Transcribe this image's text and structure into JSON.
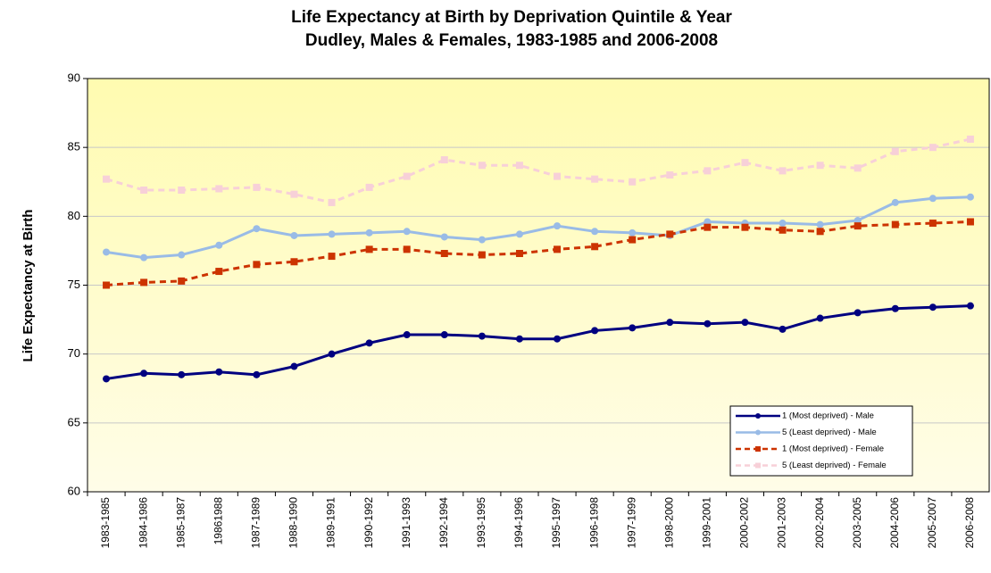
{
  "chart_data": {
    "type": "line",
    "title": "Life Expectancy at Birth by Deprivation Quintile & Year",
    "subtitle": "Dudley, Males & Females, 1983-1985 and 2006-2008",
    "y_label": "Life Expectancy at Birth",
    "categories": [
      "1983-1985",
      "1984-1986",
      "1985-1987",
      "19861988",
      "1987-1989",
      "1988-1990",
      "1989-1991",
      "1990-1992",
      "1991-1993",
      "1992-1994",
      "1993-1995",
      "1994-1996",
      "1995-1997",
      "1996-1998",
      "1997-1999",
      "1998-2000",
      "1999-2001",
      "2000-2002",
      "2001-2003",
      "2002-2004",
      "2003-2005",
      "2004-2006",
      "2005-2007",
      "2006-2008"
    ],
    "series": [
      {
        "name": "1 (Most deprived) - Male",
        "color": "#000080",
        "marker": "circle",
        "dashed": false,
        "values": [
          68.2,
          68.6,
          68.5,
          68.7,
          68.5,
          69.1,
          70.0,
          70.8,
          71.4,
          71.4,
          71.3,
          71.1,
          71.1,
          71.7,
          71.9,
          72.3,
          72.2,
          72.3,
          71.8,
          72.6,
          73.0,
          73.3,
          73.4,
          73.5
        ]
      },
      {
        "name": "5 (Least deprived) - Male",
        "color": "#99bbe6",
        "marker": "circle",
        "dashed": false,
        "values": [
          77.4,
          77.0,
          77.2,
          77.9,
          79.1,
          78.6,
          78.7,
          78.8,
          78.9,
          78.5,
          78.3,
          78.7,
          79.3,
          78.9,
          78.8,
          78.6,
          79.6,
          79.5,
          79.5,
          79.4,
          79.7,
          81.0,
          81.3,
          81.4
        ]
      },
      {
        "name": "1 (Most deprived) - Female",
        "color": "#cc3300",
        "marker": "square",
        "dashed": true,
        "values": [
          75.0,
          75.2,
          75.3,
          76.0,
          76.5,
          76.7,
          77.1,
          77.6,
          77.6,
          77.3,
          77.2,
          77.3,
          77.6,
          77.8,
          78.3,
          78.7,
          79.2,
          79.2,
          79.0,
          78.9,
          79.3,
          79.4,
          79.5,
          79.6
        ]
      },
      {
        "name": "5 (Least deprived) - Female",
        "color": "#f7d0d8",
        "marker": "square",
        "dashed": true,
        "values": [
          82.7,
          81.9,
          81.9,
          82.0,
          82.1,
          81.6,
          81.0,
          82.1,
          82.9,
          84.1,
          83.7,
          83.7,
          82.9,
          82.7,
          82.5,
          83.0,
          83.3,
          83.9,
          83.3,
          83.7,
          83.5,
          84.7,
          85.0,
          85.6
        ]
      }
    ],
    "ylim": [
      60,
      90
    ],
    "yticks": [
      60,
      65,
      70,
      75,
      80,
      85,
      90
    ],
    "grid": true,
    "legend": "lower-right"
  }
}
